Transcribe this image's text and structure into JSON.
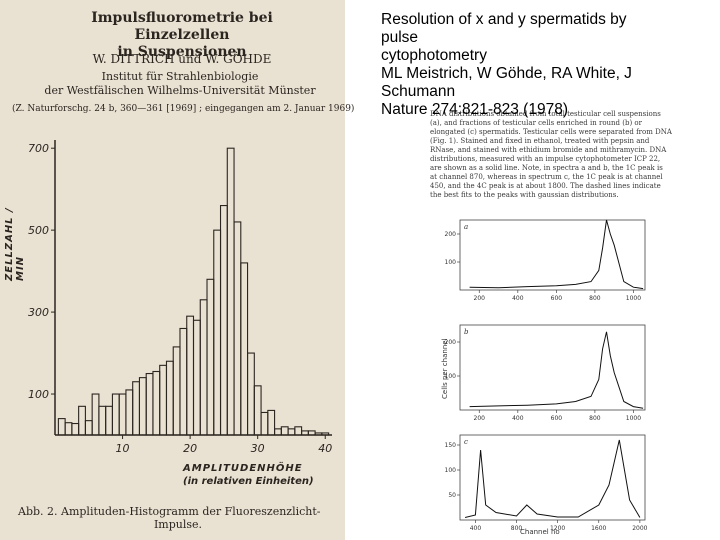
{
  "paper_left": {
    "title_line1": "Impulsfluorometrie bei Einzelzellen",
    "title_line2": "in Suspensionen",
    "authors": "W. DITTRICH und W. GÖHDE",
    "institute_line1": "Institut für Strahlenbiologie",
    "institute_line2": "der Westfälischen Wilhelms-Universität Münster",
    "reference": "(Z. Naturforschg. 24 b, 360—361 [1969] ; eingegangen am 2. Januar 1969)",
    "caption_line1": "Abb. 2.  Amplituden-Histogramm der Fluoreszenzlicht-",
    "caption_line2": "Impulse."
  },
  "chart_data": [
    {
      "type": "bar",
      "title": "",
      "xlabel": "AMPLITUDENHÖHE",
      "xlabel_sub": "(in relativen Einheiten)",
      "ylabel": "ZELLZAHL / MIN",
      "xlim": [
        0,
        41
      ],
      "ylim": [
        0,
        720
      ],
      "x_ticks": [
        "10",
        "20",
        "30",
        "40"
      ],
      "y_ticks": [
        "100",
        "300",
        "500",
        "700"
      ],
      "x": [
        1,
        2,
        3,
        4,
        5,
        6,
        7,
        8,
        9,
        10,
        11,
        12,
        13,
        14,
        15,
        16,
        17,
        18,
        19,
        20,
        21,
        22,
        23,
        24,
        25,
        26,
        27,
        28,
        29,
        30,
        31,
        32,
        33,
        34,
        35,
        36,
        37,
        38,
        39,
        40
      ],
      "values": [
        40,
        30,
        28,
        70,
        35,
        100,
        70,
        70,
        100,
        100,
        110,
        130,
        140,
        150,
        155,
        170,
        180,
        215,
        260,
        290,
        280,
        330,
        380,
        500,
        560,
        700,
        520,
        420,
        200,
        120,
        55,
        60,
        15,
        20,
        15,
        20,
        10,
        10,
        5,
        5
      ]
    },
    {
      "type": "line",
      "panel": "a",
      "xlabel": "Channel no",
      "ylabel": "Cells per channel",
      "x_ticks": [
        "200",
        "400",
        "600",
        "800",
        "1000"
      ],
      "y_ticks": [
        "100",
        "200"
      ],
      "series": [
        {
          "x": [
            150,
            300,
            450,
            600,
            700,
            780,
            820,
            840,
            860,
            880,
            900,
            950,
            1000,
            1050
          ],
          "values": [
            10,
            8,
            12,
            15,
            20,
            30,
            70,
            150,
            250,
            200,
            160,
            30,
            10,
            5
          ]
        }
      ]
    },
    {
      "type": "line",
      "panel": "b",
      "xlabel": "Channel no",
      "ylabel": "Cells per channel",
      "x_ticks": [
        "200",
        "400",
        "600",
        "800",
        "1000"
      ],
      "y_ticks": [
        "100",
        "200"
      ],
      "series": [
        {
          "x": [
            150,
            300,
            450,
            600,
            700,
            780,
            820,
            840,
            860,
            880,
            900,
            950,
            1000,
            1050
          ],
          "values": [
            10,
            12,
            14,
            18,
            25,
            40,
            90,
            180,
            230,
            160,
            110,
            25,
            10,
            5
          ]
        }
      ]
    },
    {
      "type": "line",
      "panel": "c",
      "xlabel": "Channel no",
      "ylabel": "Cells per channel",
      "x_ticks": [
        "400",
        "800",
        "1200",
        "1600",
        "2000"
      ],
      "y_ticks": [
        "50",
        "100",
        "150"
      ],
      "series": [
        {
          "x": [
            300,
            400,
            450,
            500,
            600,
            800,
            900,
            1000,
            1200,
            1400,
            1600,
            1700,
            1800,
            1900,
            2000
          ],
          "values": [
            5,
            10,
            140,
            30,
            15,
            8,
            30,
            12,
            6,
            6,
            30,
            70,
            160,
            40,
            5
          ]
        }
      ]
    }
  ],
  "paper_right": {
    "paragraph": "DNA distributions obtained from total testicular cell suspensions (a), and fractions of testicular cells enriched in round (b) or elongated (c) spermatids. Testicular cells were separated from DNA (Fig. 1). Stained and fixed in ethanol, treated with pepsin and RNase, and stained with ethidium bromide and mithramycin. DNA distributions, measured with an impulse cytophotometer ICP 22, are shown as a solid line. Note, in spectra a and b, the 1C peak is at channel 870, whereas in spectrum c, the 1C peak is at channel 450, and the 4C peak is at about 1800. The dashed lines indicate the best fits to the peaks with gaussian distributions.",
    "x_axis_title": "Channel no",
    "y_axis_title": "Cells per channel"
  },
  "overlay": {
    "line1": "Resolution of x and y spermatids by",
    "line2": "pulse",
    "line3": "cytophotometry",
    "line4": "ML Meistrich, W Göhde, RA White, J",
    "line5": "Schumann",
    "line6": "Nature 274:821-823 (1978)"
  }
}
